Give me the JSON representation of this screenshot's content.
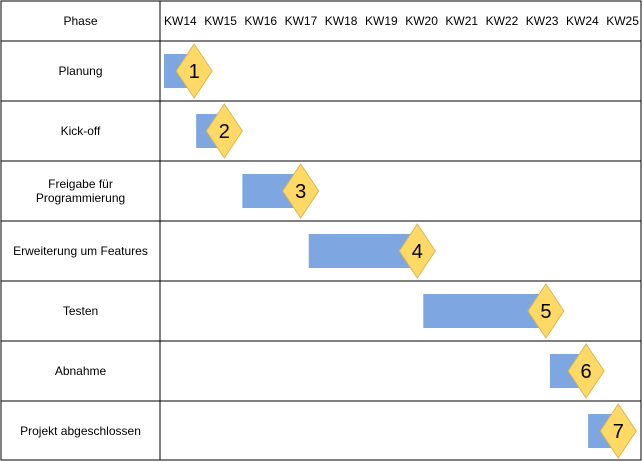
{
  "header": {
    "phase_label": "Phase"
  },
  "weeks": [
    "KW14",
    "KW15",
    "KW16",
    "KW17",
    "KW18",
    "KW19",
    "KW20",
    "KW21",
    "KW22",
    "KW23",
    "KW24",
    "KW25"
  ],
  "phases": [
    {
      "label": "Planung",
      "milestone": "1",
      "start_week": 14.0,
      "end_week": 14.75
    },
    {
      "label": "Kick-off",
      "milestone": "2",
      "start_week": 14.8,
      "end_week": 15.5
    },
    {
      "label": "Freigabe für\nProgrammierung",
      "milestone": "3",
      "start_week": 15.95,
      "end_week": 17.4
    },
    {
      "label": "Erweiterung um Features",
      "milestone": "4",
      "start_week": 17.6,
      "end_week": 20.3
    },
    {
      "label": "Testen",
      "milestone": "5",
      "start_week": 20.45,
      "end_week": 23.5
    },
    {
      "label": "Abnahme",
      "milestone": "6",
      "start_week": 23.6,
      "end_week": 24.5
    },
    {
      "label": "Projekt abgeschlossen",
      "milestone": "7",
      "start_week": 24.55,
      "end_week": 25.3
    }
  ],
  "colors": {
    "bar": "#7ea6e0",
    "milestone_fill": "#ffd966",
    "milestone_stroke": "#d6b656",
    "grid": "#000000",
    "text": "#000000"
  }
}
